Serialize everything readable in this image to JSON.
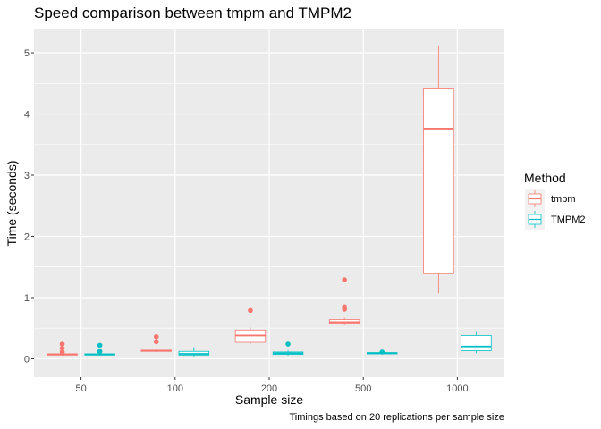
{
  "chart_data": {
    "type": "boxplot",
    "title": "Speed comparison between tmpm and TMPM2",
    "xlabel": "Sample size",
    "ylabel": "Time (seconds)",
    "caption": "Timings based on 20 replications per sample size",
    "categories": [
      "50",
      "100",
      "200",
      "500",
      "1000"
    ],
    "y_ticks": [
      0,
      1,
      2,
      3,
      4,
      5
    ],
    "y_tick_labels": [
      "0",
      "1",
      "2",
      "3",
      "4",
      "5"
    ],
    "ylim": [
      -0.3,
      5.38
    ],
    "grid": true,
    "legend": {
      "title": "Method",
      "position": "right",
      "entries": [
        "tmpm",
        "TMPM2"
      ]
    },
    "series": [
      {
        "name": "tmpm",
        "color": "#F8766D",
        "boxes": [
          {
            "category": "50",
            "min": 0.05,
            "q1": 0.06,
            "median": 0.07,
            "q3": 0.08,
            "max": 0.09,
            "outliers": [
              0.11,
              0.17,
              0.24
            ]
          },
          {
            "category": "100",
            "min": 0.11,
            "q1": 0.12,
            "median": 0.13,
            "q3": 0.14,
            "max": 0.15,
            "outliers": [
              0.28,
              0.36
            ]
          },
          {
            "category": "200",
            "min": 0.24,
            "q1": 0.27,
            "median": 0.38,
            "q3": 0.47,
            "max": 0.51,
            "outliers": [
              0.79
            ]
          },
          {
            "category": "500",
            "min": 0.55,
            "q1": 0.58,
            "median": 0.6,
            "q3": 0.64,
            "max": 0.67,
            "outliers": [
              0.81,
              0.85,
              1.29
            ]
          },
          {
            "category": "1000",
            "min": 1.07,
            "q1": 1.39,
            "median": 3.76,
            "q3": 4.41,
            "max": 5.12,
            "outliers": []
          }
        ]
      },
      {
        "name": "TMPM2",
        "color": "#00BFC4",
        "boxes": [
          {
            "category": "50",
            "min": 0.05,
            "q1": 0.06,
            "median": 0.07,
            "q3": 0.08,
            "max": 0.09,
            "outliers": [
              0.12,
              0.22
            ]
          },
          {
            "category": "100",
            "min": 0.03,
            "q1": 0.06,
            "median": 0.08,
            "q3": 0.12,
            "max": 0.19,
            "outliers": []
          },
          {
            "category": "200",
            "min": 0.05,
            "q1": 0.07,
            "median": 0.09,
            "q3": 0.11,
            "max": 0.14,
            "outliers": [
              0.24
            ]
          },
          {
            "category": "500",
            "min": 0.07,
            "q1": 0.08,
            "median": 0.09,
            "q3": 0.1,
            "max": 0.1,
            "outliers": [
              0.11
            ]
          },
          {
            "category": "1000",
            "min": 0.09,
            "q1": 0.13,
            "median": 0.2,
            "q3": 0.38,
            "max": 0.45,
            "outliers": []
          }
        ]
      }
    ]
  }
}
